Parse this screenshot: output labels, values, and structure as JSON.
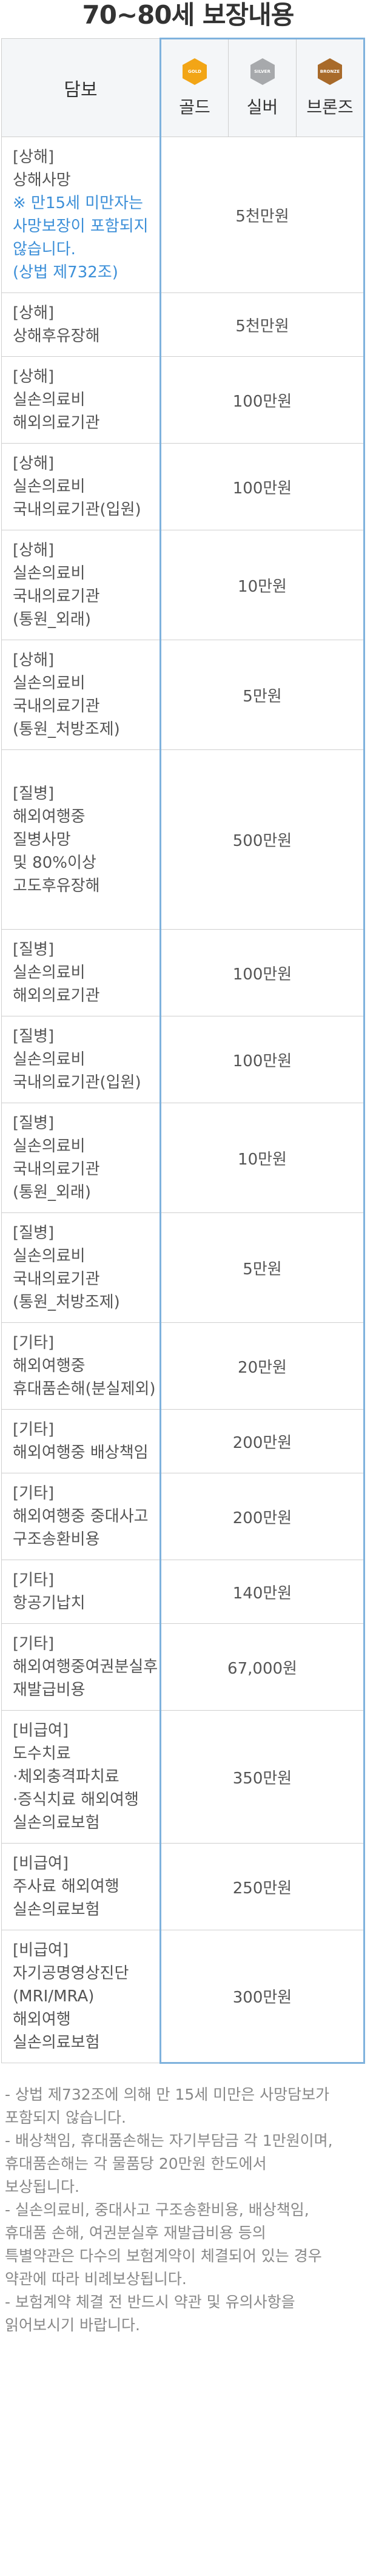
{
  "page": {
    "title": "70~80세 보장내용"
  },
  "table": {
    "header_label": "담보",
    "plans": [
      {
        "name": "골드",
        "badge_text": "GOLD",
        "color": "#f2a516"
      },
      {
        "name": "실버",
        "badge_text": "SILVER",
        "color": "#a7a9ac"
      },
      {
        "name": "브론즈",
        "badge_text": "BRONZE",
        "color": "#a86a2a"
      }
    ],
    "rows": [
      {
        "lines": [
          "[상해]",
          "상해사망"
        ],
        "note_lines": [
          "※ 만15세 미만자는",
          "사망보장이 포함되지",
          "않습니다.",
          "(상법 제732조)"
        ],
        "amount": "5천만원"
      },
      {
        "lines": [
          "[상해]",
          "상해후유장해"
        ],
        "note_lines": [],
        "amount": "5천만원"
      },
      {
        "lines": [
          "[상해]",
          "실손의료비",
          "해외의료기관"
        ],
        "note_lines": [],
        "amount": "100만원"
      },
      {
        "lines": [
          "[상해]",
          "실손의료비",
          "국내의료기관(입원)"
        ],
        "note_lines": [],
        "amount": "100만원"
      },
      {
        "lines": [
          "[상해]",
          "실손의료비",
          "국내의료기관",
          "(통원_외래)"
        ],
        "note_lines": [],
        "amount": "10만원"
      },
      {
        "lines": [
          "[상해]",
          "실손의료비",
          "국내의료기관",
          "(통원_처방조제)"
        ],
        "note_lines": [],
        "amount": "5만원"
      },
      {
        "lines": [
          "[질병]",
          "해외여행중",
          "질병사망",
          "및 80%이상",
          "고도후유장해"
        ],
        "note_lines": [],
        "amount": "500만원"
      },
      {
        "lines": [
          "[질병]",
          "실손의료비",
          "해외의료기관"
        ],
        "note_lines": [],
        "amount": "100만원"
      },
      {
        "lines": [
          "[질병]",
          "실손의료비",
          "국내의료기관(입원)"
        ],
        "note_lines": [],
        "amount": "100만원"
      },
      {
        "lines": [
          "[질병]",
          "실손의료비",
          "국내의료기관",
          "(통원_외래)"
        ],
        "note_lines": [],
        "amount": "10만원"
      },
      {
        "lines": [
          "[질병]",
          "실손의료비",
          "국내의료기관",
          "(통원_처방조제)"
        ],
        "note_lines": [],
        "amount": "5만원"
      },
      {
        "lines": [
          "[기타]",
          "해외여행중",
          "휴대품손해(분실제외)"
        ],
        "note_lines": [],
        "amount": "20만원"
      },
      {
        "lines": [
          "[기타]",
          "해외여행중 배상책임"
        ],
        "note_lines": [],
        "amount": "200만원"
      },
      {
        "lines": [
          "[기타]",
          "해외여행중 중대사고",
          "구조송환비용"
        ],
        "note_lines": [],
        "amount": "200만원"
      },
      {
        "lines": [
          "[기타]",
          "항공기납치"
        ],
        "note_lines": [],
        "amount": "140만원"
      },
      {
        "lines": [
          "[기타]",
          "해외여행중여권분실후",
          "재발급비용"
        ],
        "note_lines": [],
        "amount": "67,000원"
      },
      {
        "lines": [
          "[비급여]",
          "도수치료",
          "·체외충격파치료",
          "·증식치료 해외여행",
          "실손의료보험"
        ],
        "note_lines": [],
        "amount": "350만원"
      },
      {
        "lines": [
          "[비급여]",
          "주사료 해외여행",
          "실손의료보험"
        ],
        "note_lines": [],
        "amount": "250만원"
      },
      {
        "lines": [
          "[비급여]",
          "자기공명영상진단",
          "(MRI/MRA)",
          "해외여행",
          "실손의료보험"
        ],
        "note_lines": [],
        "amount": "300만원"
      }
    ]
  },
  "notes": [
    [
      "- 상법 제732조에 의해 만 15세 미만은 사망담보가",
      "  포함되지 않습니다."
    ],
    [
      "- 배상책임, 휴대품손해는 자기부담금 각 1만원이며,",
      "  휴대품손해는 각 물품당 20만원 한도에서",
      "  보상됩니다."
    ],
    [
      "- 실손의료비, 중대사고 구조송환비용, 배상책임,",
      "  휴대품 손해, 여권분실후 재발급비용 등의",
      "  특별약관은 다수의 보험계약이 체결되어 있는 경우",
      "  약관에 따라 비례보상됩니다."
    ],
    [
      "- 보험계약 체결 전 반드시 약관 및 유의사항을",
      "  읽어보시기 바랍니다."
    ]
  ]
}
